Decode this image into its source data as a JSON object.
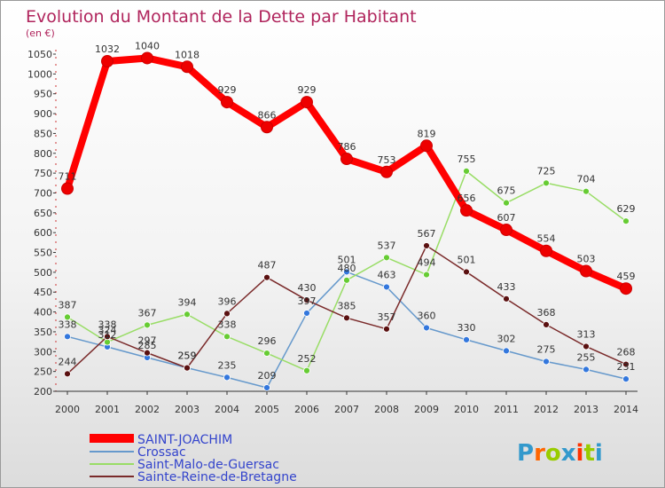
{
  "chart_data": {
    "type": "line",
    "title": "Evolution du Montant de la Dette par Habitant",
    "subtitle": "(en €)",
    "x": [
      "2000",
      "2001",
      "2002",
      "2003",
      "2004",
      "2005",
      "2006",
      "2007",
      "2008",
      "2009",
      "2010",
      "2011",
      "2012",
      "2013",
      "2014"
    ],
    "ylim": [
      200,
      1050
    ],
    "yticks": [
      200,
      250,
      300,
      350,
      400,
      450,
      500,
      550,
      600,
      650,
      700,
      750,
      800,
      850,
      900,
      950,
      1000,
      1050
    ],
    "grid": false,
    "legend_position": "bottom-left",
    "series": [
      {
        "name": "SAINT-JOACHIM",
        "color": "#ff0000",
        "point_color": "#ee0000",
        "label_color": "#333333",
        "values": [
          711,
          1032,
          1040,
          1018,
          929,
          866,
          929,
          786,
          753,
          819,
          656,
          607,
          554,
          503,
          459
        ]
      },
      {
        "name": "Crossac",
        "color": "#6699cc",
        "point_color": "#3377dd",
        "label_color": "#333333",
        "values": [
          338,
          312,
          285,
          259,
          235,
          209,
          397,
          501,
          463,
          360,
          330,
          302,
          275,
          255,
          231
        ]
      },
      {
        "name": "Saint-Malo-de-Guersac",
        "color": "#99dd66",
        "point_color": "#66cc33",
        "label_color": "#333333",
        "values": [
          387,
          324,
          367,
          394,
          338,
          296,
          252,
          480,
          537,
          494,
          755,
          675,
          725,
          704,
          629
        ]
      },
      {
        "name": "Sainte-Reine-de-Bretagne",
        "color": "#7a2a2a",
        "point_color": "#5a1010",
        "label_color": "#333333",
        "values": [
          244,
          338,
          297,
          259,
          396,
          487,
          430,
          385,
          357,
          567,
          501,
          433,
          368,
          313,
          268
        ]
      }
    ],
    "point_labels": [
      [
        "711",
        "1032",
        "1040",
        "1018",
        "929",
        "866",
        "929",
        "786",
        "753",
        "819",
        "656",
        "607",
        "554",
        "503",
        "459"
      ],
      [
        "338",
        "312",
        "285",
        "259",
        "235",
        "209",
        "397",
        "501",
        "463",
        "360",
        "330",
        "302",
        "275",
        "255",
        "231"
      ],
      [
        "387",
        "324",
        "367",
        "394",
        "338",
        "296",
        "252",
        "480",
        "537",
        "494",
        "755",
        "675",
        "725",
        "704",
        "629"
      ],
      [
        "244",
        "338",
        "297",
        "259",
        "396",
        "487",
        "430",
        "385",
        "357",
        "567",
        "501",
        "433",
        "368",
        "313",
        "268"
      ]
    ]
  },
  "logo": {
    "text": "Proxiti",
    "colors": [
      "#3399cc",
      "#ff6600",
      "#99cc00",
      "#3399cc",
      "#ff3300",
      "#99cc00",
      "#3399cc"
    ]
  }
}
